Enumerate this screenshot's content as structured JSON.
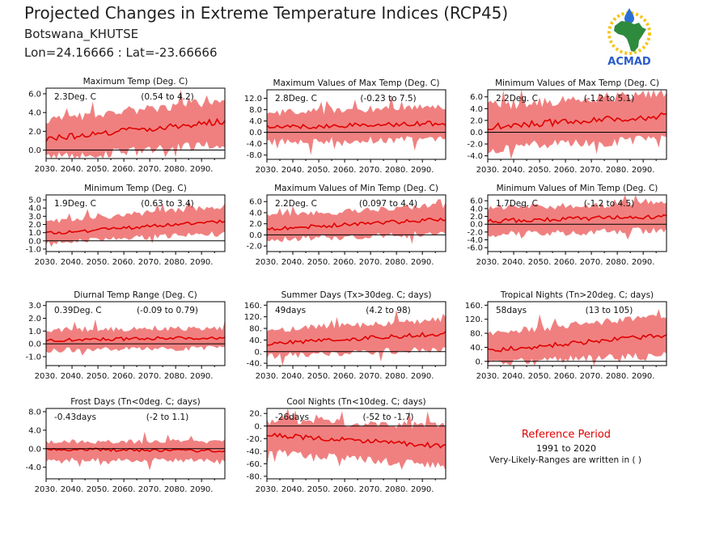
{
  "header": {
    "title": "Projected Changes in Extreme Temperature Indices (RCP45)",
    "region": "Botswana_KHUTSE",
    "coords": "Lon=24.16666 : Lat=-23.66666"
  },
  "logo": {
    "text": "ACMAD",
    "icon": "africa-map-icon",
    "colors": {
      "map": "#2e8b3d",
      "sun": "#f5c518",
      "drop": "#2a6fd6",
      "text": "#2a5cc8"
    }
  },
  "reference": {
    "title": "Reference Period",
    "period": "1991 to 2020",
    "note": "Very-Likely-Ranges are written in ( )"
  },
  "colors": {
    "band": "#f08080",
    "line": "#e00000",
    "zero_line": "#000000"
  },
  "chart_data": [
    {
      "type": "area",
      "title": "Maximum Temp (Deg. C)",
      "value_label": "2.3Deg. C",
      "range_label": "(0.54 to 4.2)",
      "xlim": [
        2030,
        2099
      ],
      "ylim": [
        -0.9,
        6.6
      ],
      "yticks": [
        "6.0",
        "4.0",
        "2.0",
        "0.0"
      ],
      "ytick_values": [
        6,
        4,
        2,
        0
      ],
      "xticks": [
        "2030.",
        "2040.",
        "2050.",
        "2060.",
        "2070.",
        "2080.",
        "2090."
      ],
      "xtick_values": [
        2030,
        2040,
        2050,
        2060,
        2070,
        2080,
        2090
      ],
      "mean_start": 1.2,
      "mean_end": 3.1,
      "band_lower_start": -0.3,
      "band_lower_end": 1.2,
      "band_upper_start": 2.6,
      "band_upper_end": 4.8,
      "zero_line": 0
    },
    {
      "type": "area",
      "title": "Maximum Values of Max Temp (Deg. C)",
      "value_label": "2.8Deg. C",
      "range_label": "(-0.23 to 7.5)",
      "xlim": [
        2030,
        2099
      ],
      "ylim": [
        -9.5,
        15
      ],
      "yticks": [
        "12.0",
        "8.0",
        "4.0",
        "0.0",
        "-4.0",
        "-8.0"
      ],
      "ytick_values": [
        12,
        8,
        4,
        0,
        -4,
        -8
      ],
      "xticks": [
        "2030.",
        "2040.",
        "2050.",
        "2060.",
        "2070.",
        "2080.",
        "2090."
      ],
      "xtick_values": [
        2030,
        2040,
        2050,
        2060,
        2070,
        2080,
        2090
      ],
      "mean_start": 1.8,
      "mean_end": 3.2,
      "band_lower_start": -2.0,
      "band_lower_end": -1.0,
      "band_upper_start": 5.5,
      "band_upper_end": 8.0,
      "zero_line": 0
    },
    {
      "type": "area",
      "title": "Minimum Values of Max Temp (Deg. C)",
      "value_label": "2.2Deg. C",
      "range_label": "(-1.2 to 5.1)",
      "xlim": [
        2030,
        2099
      ],
      "ylim": [
        -4.6,
        7.2
      ],
      "yticks": [
        "6.0",
        "4.0",
        "2.0",
        "0.0",
        "-2.0",
        "-4.0"
      ],
      "ytick_values": [
        6,
        4,
        2,
        0,
        -2,
        -4
      ],
      "xticks": [
        "2030.",
        "2040.",
        "2050.",
        "2060.",
        "2070.",
        "2080.",
        "2090."
      ],
      "xtick_values": [
        2030,
        2040,
        2050,
        2060,
        2070,
        2080,
        2090
      ],
      "mean_start": 1.0,
      "mean_end": 2.8,
      "band_lower_start": -1.8,
      "band_lower_end": -0.2,
      "band_upper_start": 3.5,
      "band_upper_end": 5.8,
      "zero_line": 0
    },
    {
      "type": "area",
      "title": "Minimum Temp (Deg. C)",
      "value_label": "1.9Deg. C",
      "range_label": "(0.63 to 3.4)",
      "xlim": [
        2030,
        2099
      ],
      "ylim": [
        -1.3,
        5.6
      ],
      "yticks": [
        "5.0",
        "4.0",
        "3.0",
        "2.0",
        "1.0",
        "0.0",
        "-1.0"
      ],
      "ytick_values": [
        5,
        4,
        3,
        2,
        1,
        0,
        -1
      ],
      "xticks": [
        "2030.",
        "2040.",
        "2050.",
        "2060.",
        "2070.",
        "2080.",
        "2090."
      ],
      "xtick_values": [
        2030,
        2040,
        2050,
        2060,
        2070,
        2080,
        2090
      ],
      "mean_start": 0.9,
      "mean_end": 2.4,
      "band_lower_start": 0.1,
      "band_lower_end": 1.3,
      "band_upper_start": 2.0,
      "band_upper_end": 3.9,
      "zero_line": 0
    },
    {
      "type": "area",
      "title": "Maximum Values of Min Temp (Deg. C)",
      "value_label": "2.2Deg. C",
      "range_label": "(0.097 to 4.4)",
      "xlim": [
        2030,
        2099
      ],
      "ylim": [
        -3.0,
        7.2
      ],
      "yticks": [
        "6.0",
        "4.0",
        "2.0",
        "0.0",
        "-2.0"
      ],
      "ytick_values": [
        6,
        4,
        2,
        0,
        -2
      ],
      "xticks": [
        "2030.",
        "2040.",
        "2050.",
        "2060.",
        "2070.",
        "2080.",
        "2090."
      ],
      "xtick_values": [
        2030,
        2040,
        2050,
        2060,
        2070,
        2080,
        2090
      ],
      "mean_start": 1.1,
      "mean_end": 2.8,
      "band_lower_start": -0.4,
      "band_lower_end": 0.9,
      "band_upper_start": 2.8,
      "band_upper_end": 4.8,
      "zero_line": 0
    },
    {
      "type": "area",
      "title": "Minimum Values of Min Temp (Deg. C)",
      "value_label": "1.7Deg. C",
      "range_label": "(-1.2 to 4.5)",
      "xlim": [
        2030,
        2099
      ],
      "ylim": [
        -7.0,
        7.5
      ],
      "yticks": [
        "6.0",
        "4.0",
        "2.0",
        "0.0",
        "-2.0",
        "-4.0",
        "-6.0"
      ],
      "ytick_values": [
        6,
        4,
        2,
        0,
        -2,
        -4,
        -6
      ],
      "xticks": [
        "2030.",
        "2040.",
        "2050.",
        "2060.",
        "2070.",
        "2080.",
        "2090."
      ],
      "xtick_values": [
        2030,
        2040,
        2050,
        2060,
        2070,
        2080,
        2090
      ],
      "mean_start": 0.8,
      "mean_end": 2.0,
      "band_lower_start": -1.8,
      "band_lower_end": -0.6,
      "band_upper_start": 3.2,
      "band_upper_end": 4.6,
      "zero_line": 0
    },
    {
      "type": "area",
      "title": "Diurnal Temp Range (Deg. C)",
      "value_label": "0.39Deg. C",
      "range_label": "(-0.09 to 0.79)",
      "xlim": [
        2030,
        2099
      ],
      "ylim": [
        -1.7,
        3.3
      ],
      "yticks": [
        "3.0",
        "2.0",
        "1.0",
        "0.0",
        "-1.0"
      ],
      "ytick_values": [
        3,
        2,
        1,
        0,
        -1
      ],
      "xticks": [
        "2030.",
        "2040.",
        "2050.",
        "2060.",
        "2070.",
        "2080.",
        "2090."
      ],
      "xtick_values": [
        2030,
        2040,
        2050,
        2060,
        2070,
        2080,
        2090
      ],
      "mean_start": 0.3,
      "mean_end": 0.5,
      "band_lower_start": -0.3,
      "band_lower_end": -0.1,
      "band_upper_start": 0.9,
      "band_upper_end": 1.0,
      "zero_line": 0
    },
    {
      "type": "area",
      "title": "Summer Days (Tx>30deg. C; days)",
      "value_label": "49days",
      "range_label": "(4.2 to 98)",
      "xlim": [
        2030,
        2099
      ],
      "ylim": [
        -48,
        172
      ],
      "yticks": [
        "160.",
        "120.",
        "80.",
        "40.",
        "0.",
        "-40."
      ],
      "ytick_values": [
        160,
        120,
        80,
        40,
        0,
        -40
      ],
      "xticks": [
        "2030.",
        "2040.",
        "2050.",
        "2060.",
        "2070.",
        "2080.",
        "2090."
      ],
      "xtick_values": [
        2030,
        2040,
        2050,
        2060,
        2070,
        2080,
        2090
      ],
      "mean_start": 28,
      "mean_end": 62,
      "band_lower_start": -5,
      "band_lower_end": 22,
      "band_upper_start": 62,
      "band_upper_end": 100,
      "zero_line": 0
    },
    {
      "type": "area",
      "title": "Tropical Nights (Tn>20deg. C; days)",
      "value_label": "58days",
      "range_label": "(13 to 105)",
      "xlim": [
        2030,
        2099
      ],
      "ylim": [
        -12,
        170
      ],
      "yticks": [
        "160.",
        "120.",
        "80.",
        "40.",
        "0."
      ],
      "ytick_values": [
        160,
        120,
        80,
        40,
        0
      ],
      "xticks": [
        "2030.",
        "2040.",
        "2050.",
        "2060.",
        "2070.",
        "2080.",
        "2090."
      ],
      "xtick_values": [
        2030,
        2040,
        2050,
        2060,
        2070,
        2080,
        2090
      ],
      "mean_start": 30,
      "mean_end": 75,
      "band_lower_start": 8,
      "band_lower_end": 28,
      "band_upper_start": 68,
      "band_upper_end": 122,
      "zero_line": 0
    },
    {
      "type": "area",
      "title": "Frost Days (Tn<0deg. C; days)",
      "value_label": "-0.43days",
      "range_label": "(-2 to 1.1)",
      "xlim": [
        2030,
        2099
      ],
      "ylim": [
        -6.5,
        8.7
      ],
      "yticks": [
        "8.0",
        "4.0",
        "0.0",
        "-4.0"
      ],
      "ytick_values": [
        8,
        4,
        0,
        -4
      ],
      "xticks": [
        "2030.",
        "2040.",
        "2050.",
        "2060.",
        "2070.",
        "2080.",
        "2090."
      ],
      "xtick_values": [
        2030,
        2040,
        2050,
        2060,
        2070,
        2080,
        2090
      ],
      "mean_start": -0.1,
      "mean_end": -0.5,
      "band_lower_start": -1.9,
      "band_lower_end": -2.0,
      "band_upper_start": 1.0,
      "band_upper_end": 1.1,
      "zero_line": 0
    },
    {
      "type": "area",
      "title": "Cool Nights (Tn<10deg. C; days)",
      "value_label": "-26days",
      "range_label": "(-52 to -1.7)",
      "xlim": [
        2030,
        2099
      ],
      "ylim": [
        -84,
        28
      ],
      "yticks": [
        "20.",
        "0.",
        "-20.",
        "-40.",
        "-60.",
        "-80."
      ],
      "ytick_values": [
        20,
        0,
        -20,
        -40,
        -60,
        -80
      ],
      "xticks": [
        "2030.",
        "2040.",
        "2050.",
        "2060.",
        "2070.",
        "2080.",
        "2090."
      ],
      "xtick_values": [
        2030,
        2040,
        2050,
        2060,
        2070,
        2080,
        2090
      ],
      "mean_start": -14,
      "mean_end": -32,
      "band_lower_start": -34,
      "band_lower_end": -58,
      "band_upper_start": 2,
      "band_upper_end": -6,
      "zero_line": 0
    }
  ]
}
